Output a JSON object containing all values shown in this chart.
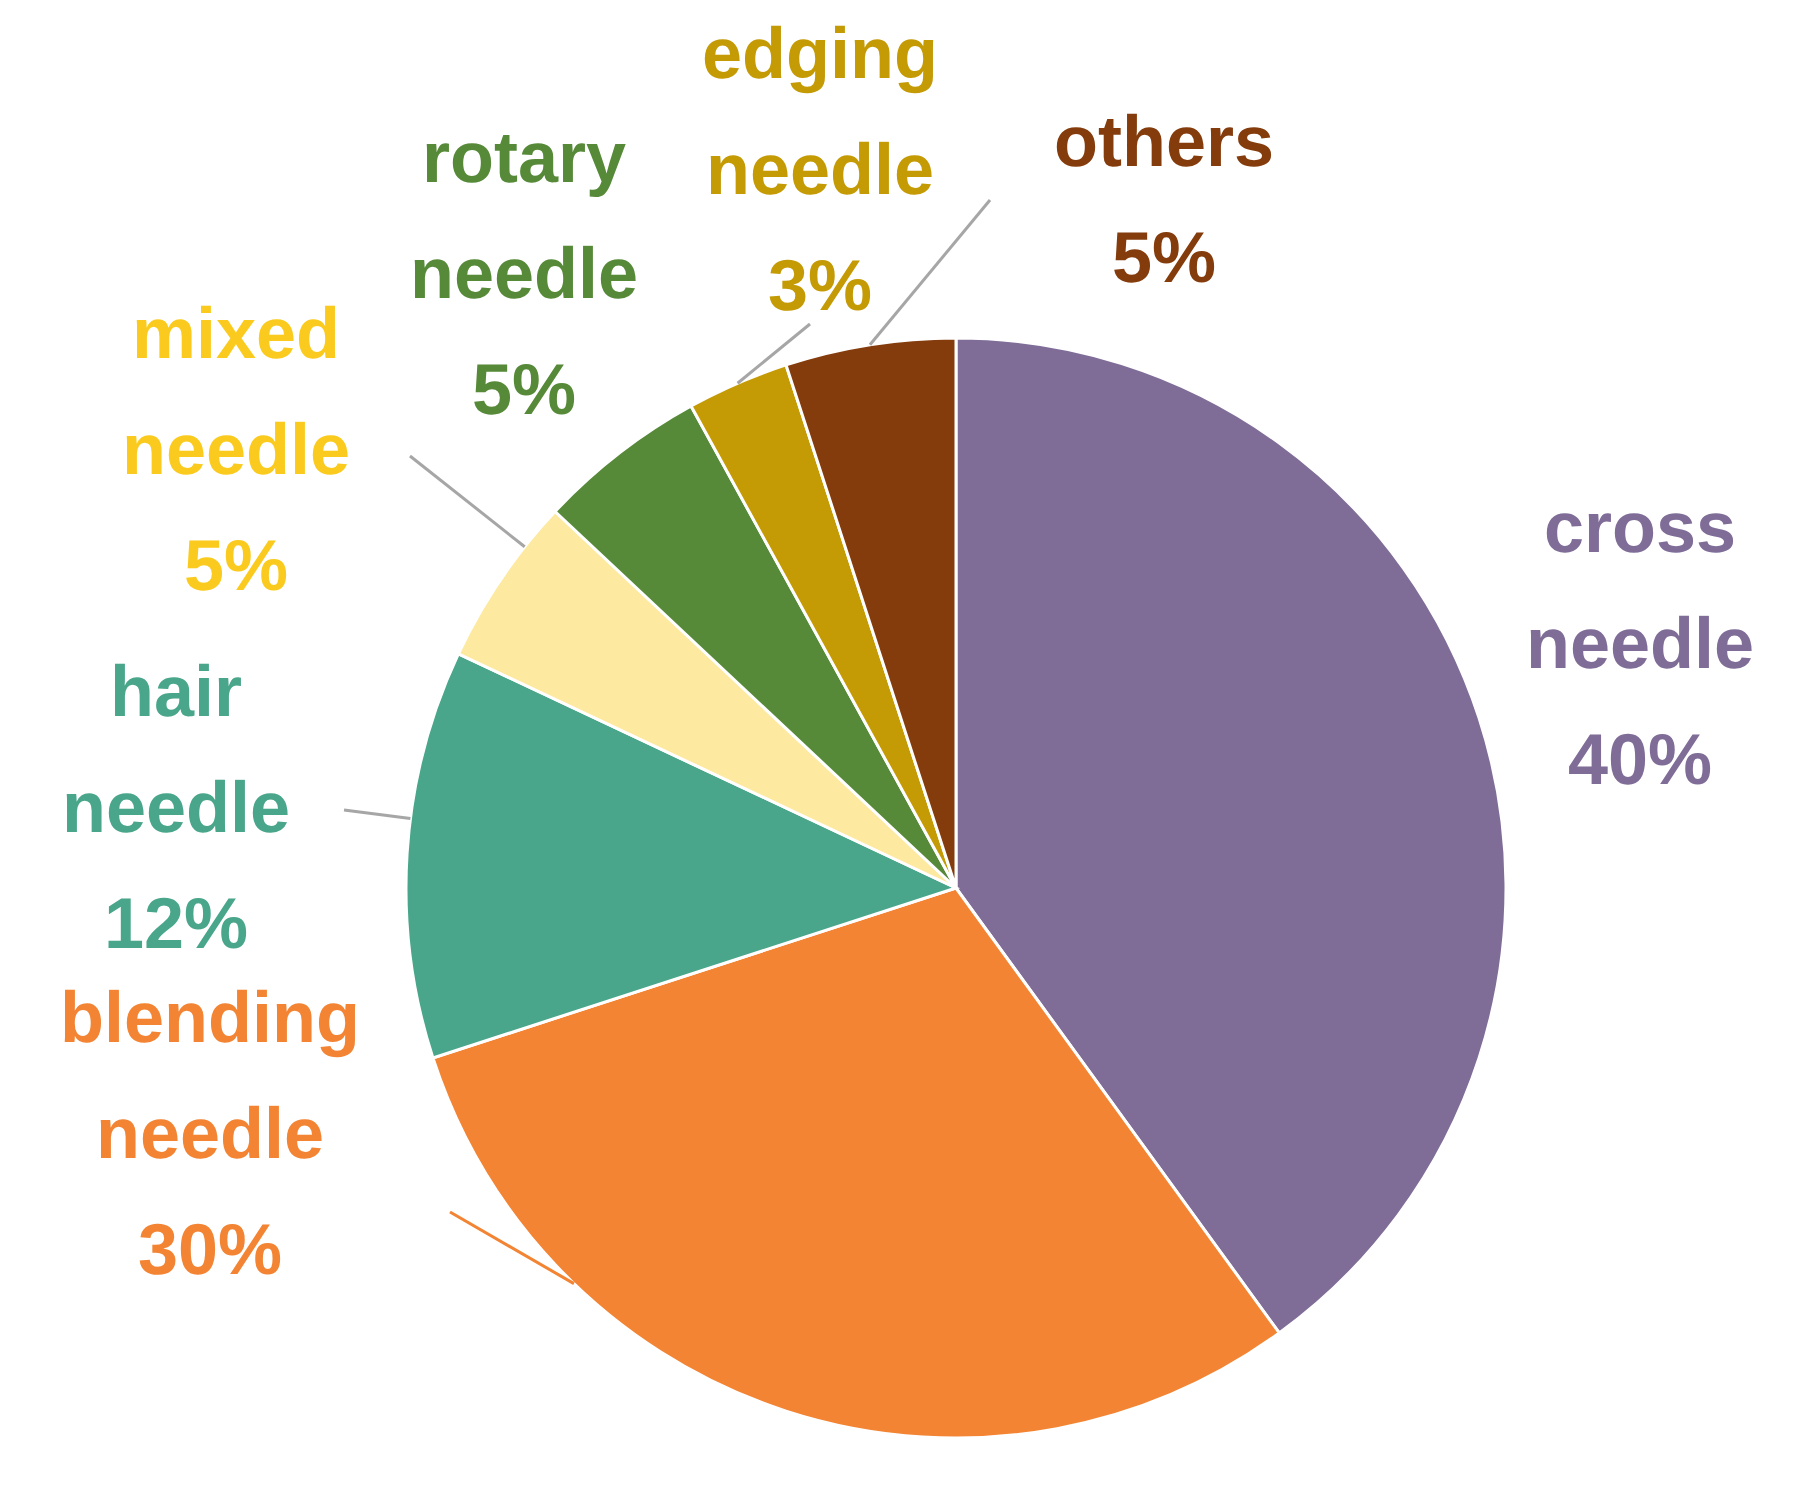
{
  "chart_data": {
    "type": "pie",
    "categories": [
      "cross needle",
      "blending needle",
      "hair needle",
      "mixed needle",
      "rotary needle",
      "edging needle",
      "others"
    ],
    "values": [
      40,
      30,
      12,
      5,
      5,
      3,
      5
    ],
    "value_labels": [
      "40%",
      "30%",
      "12%",
      "5%",
      "5%",
      "3%",
      "5%"
    ],
    "colors": [
      "#7f6d98",
      "#f28433",
      "#49a68a",
      "#fde9a0",
      "#568a38",
      "#c49a05",
      "#843c0c"
    ],
    "legend": false
  }
}
